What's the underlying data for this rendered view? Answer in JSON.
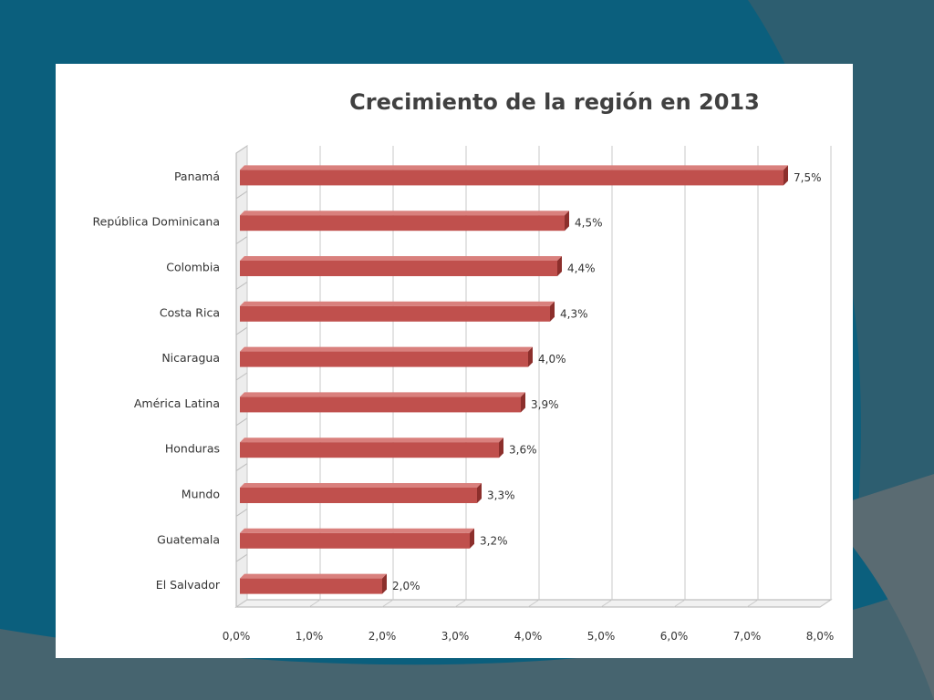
{
  "colors": {
    "page_background": "#0b5f7d",
    "panel_background": "#ffffff",
    "bar_fill": "#c0504d",
    "bar_shade": "#8c2f2c",
    "grid": "#c8c8c8"
  },
  "chart_data": {
    "type": "bar",
    "orientation": "horizontal",
    "title": "Crecimiento de la región en 2013",
    "xlabel": "",
    "ylabel": "",
    "categories": [
      "Panamá",
      "República Dominicana",
      "Colombia",
      "Costa Rica",
      "Nicaragua",
      "América Latina",
      "Honduras",
      "Mundo",
      "Guatemala",
      "El Salvador"
    ],
    "values": [
      7.5,
      4.5,
      4.4,
      4.3,
      4.0,
      3.9,
      3.6,
      3.3,
      3.2,
      2.0
    ],
    "data_labels": [
      "7,5%",
      "4,5%",
      "4,4%",
      "4,3%",
      "4,0%",
      "3,9%",
      "3,6%",
      "3,3%",
      "3,2%",
      "2,0%"
    ],
    "xlim": [
      0,
      8
    ],
    "x_ticks": [
      0,
      1,
      2,
      3,
      4,
      5,
      6,
      7,
      8
    ],
    "x_tick_labels": [
      "0,0%",
      "1,0%",
      "2,0%",
      "3,0%",
      "4,0%",
      "5,0%",
      "6,0%",
      "7,0%",
      "8,0%"
    ],
    "grid": true,
    "legend": "none",
    "style": "3d"
  }
}
